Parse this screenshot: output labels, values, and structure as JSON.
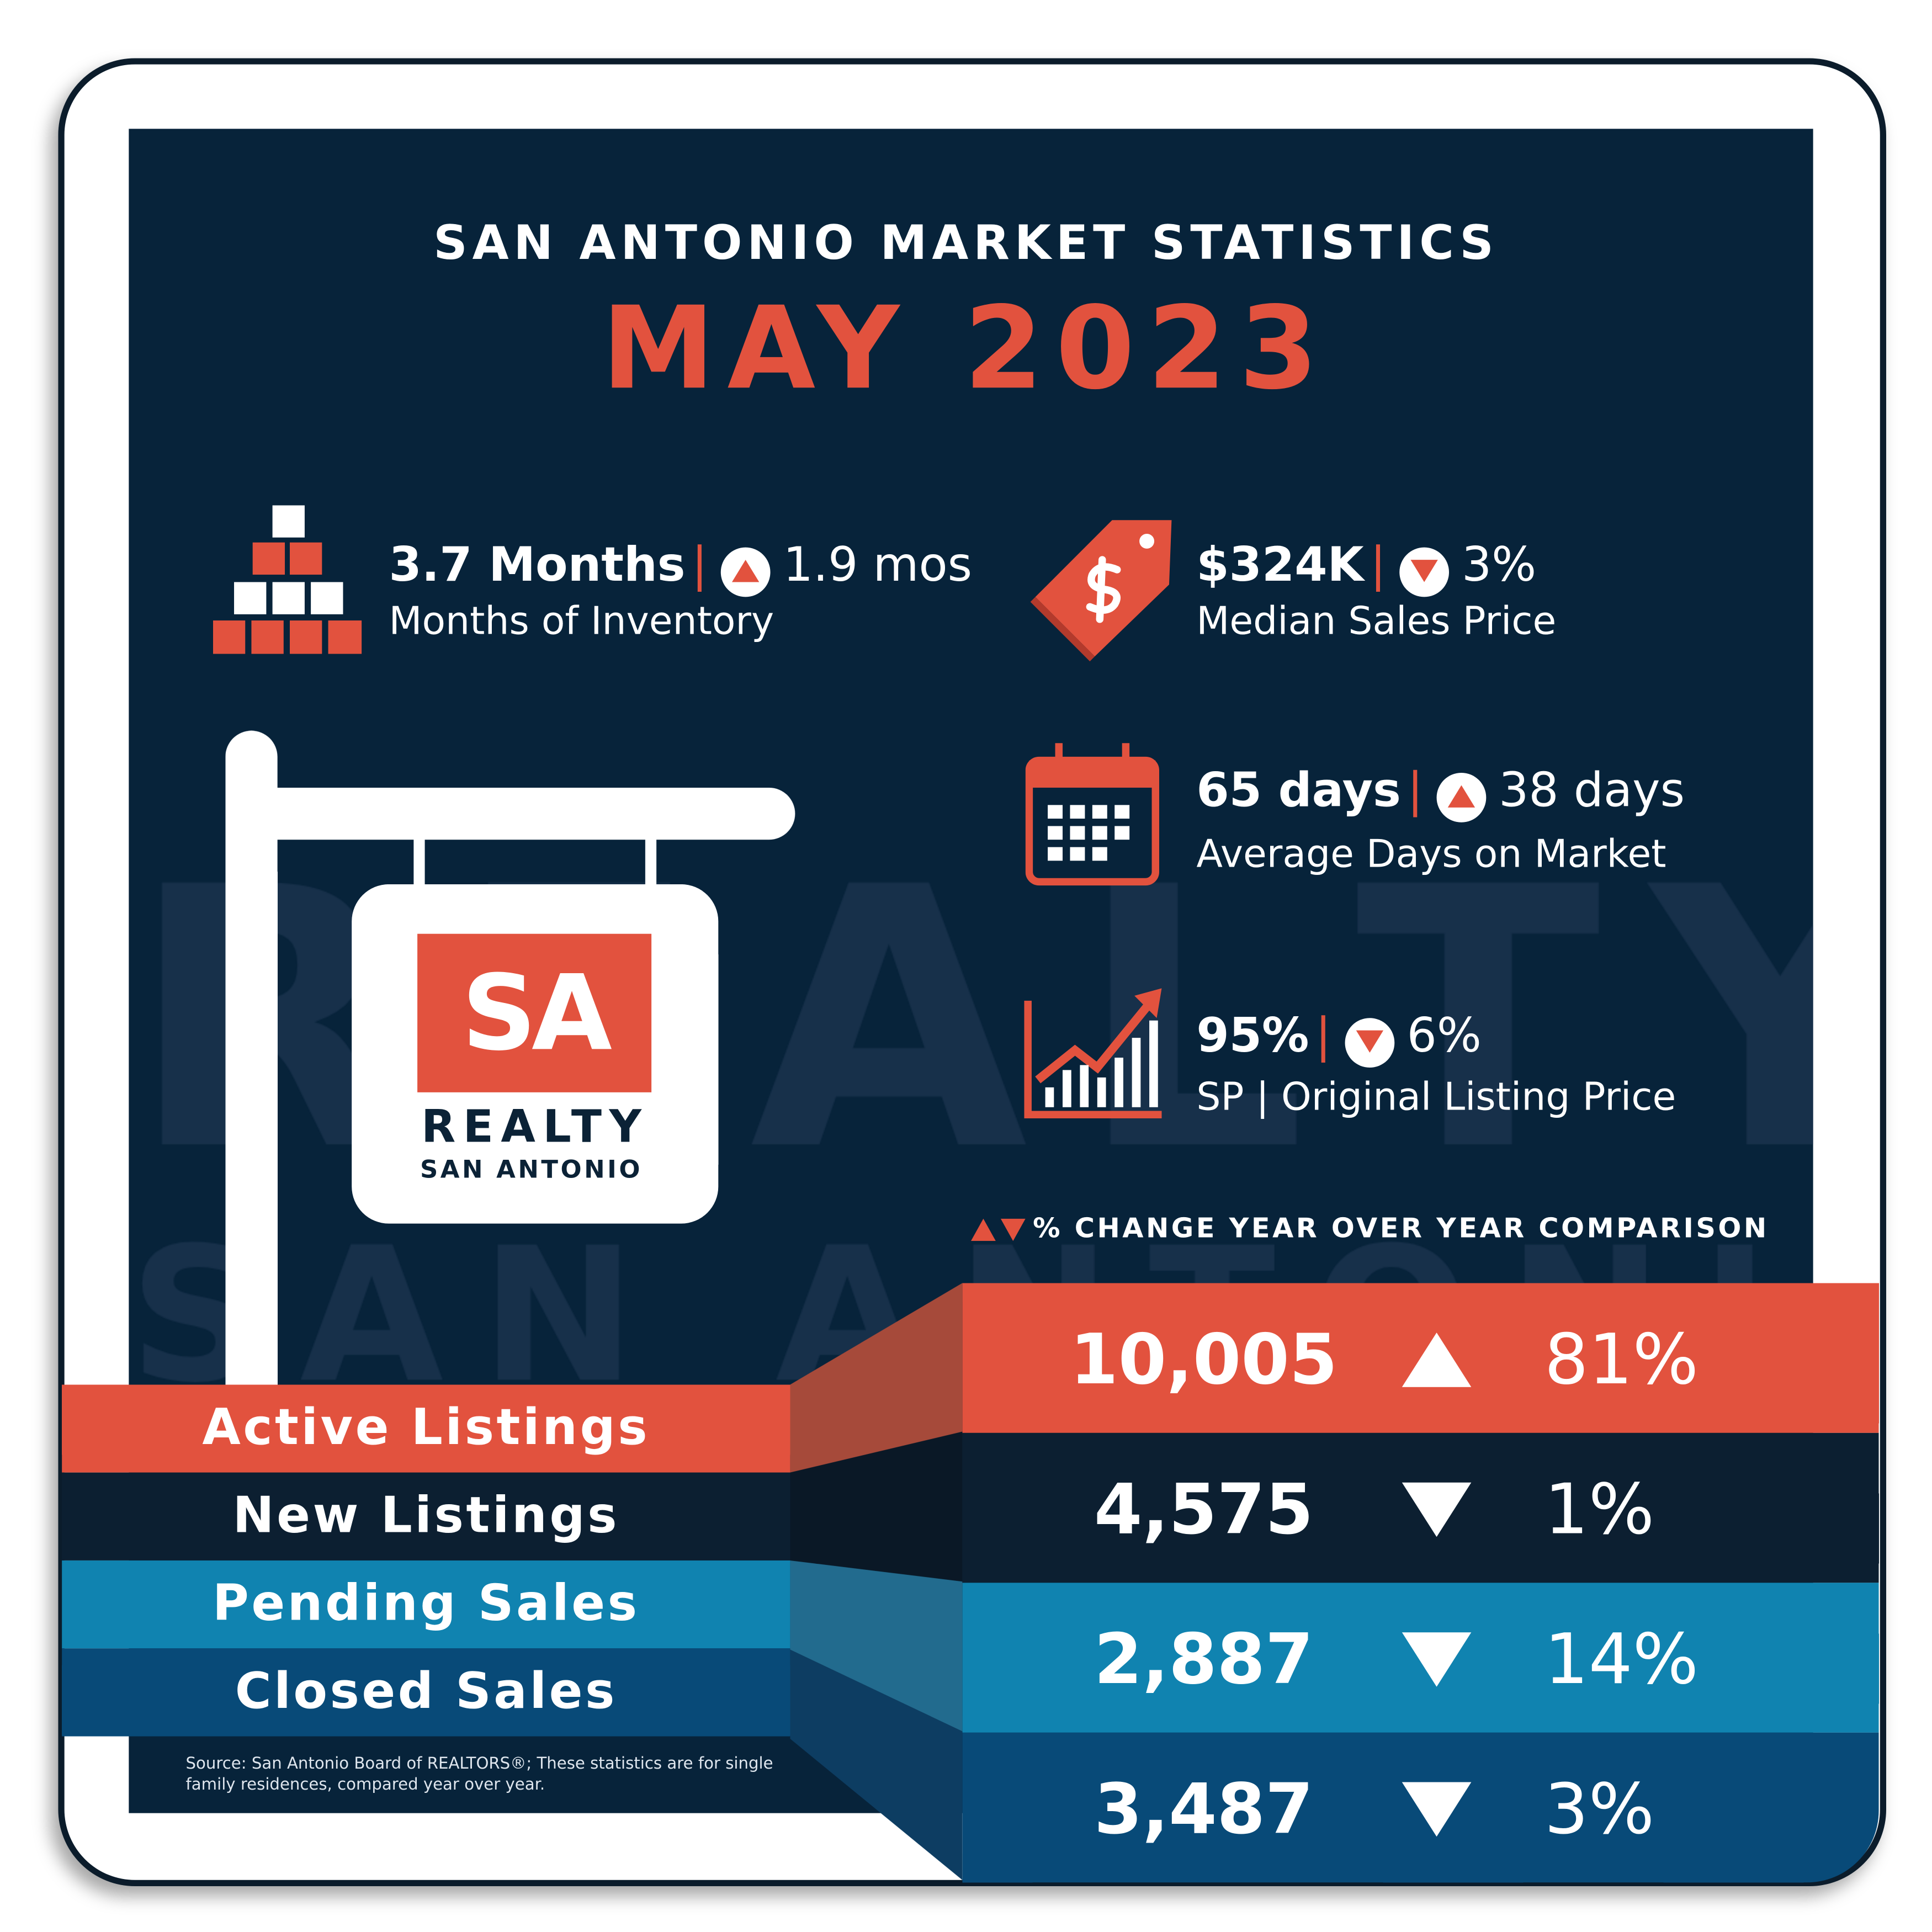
{
  "header": {
    "title": "SAN ANTONIO MARKET STATISTICS",
    "period": "MAY 2023"
  },
  "watermark": {
    "line1": "REALTY",
    "line2": "SAN ANTONIO"
  },
  "logo": {
    "mark": "SA",
    "name": "REALTY",
    "city": "SAN ANTONIO"
  },
  "stats": [
    {
      "icon": "boxes-icon",
      "value": "3.7 Months",
      "direction": "up",
      "change": "1.9 mos",
      "label": "Months of Inventory"
    },
    {
      "icon": "price-tag-icon",
      "value": "$324K",
      "direction": "down",
      "change": "3%",
      "label": "Median Sales Price"
    },
    {
      "icon": "calendar-icon",
      "value": "65 days",
      "direction": "up",
      "change": "38 days",
      "label": "Average Days on Market"
    },
    {
      "icon": "growth-chart-icon",
      "value": "95%",
      "direction": "down",
      "change": "6%",
      "label": "SP | Original Listing Price"
    }
  ],
  "legend": "% CHANGE YEAR OVER YEAR COMPARISON",
  "table": [
    {
      "label": "Active Listings",
      "value": "10,005",
      "direction": "up",
      "change": "81%",
      "color": "#e2523e"
    },
    {
      "label": "New Listings",
      "value": "4,575",
      "direction": "down",
      "change": "1%",
      "color": "#0c1f31"
    },
    {
      "label": "Pending Sales",
      "value": "2,887",
      "direction": "down",
      "change": "14%",
      "color": "#1083b0"
    },
    {
      "label": "Closed Sales",
      "value": "3,487",
      "direction": "down",
      "change": "3%",
      "color": "#084a78"
    }
  ],
  "source": "Source: San Antonio Board of REALTORS®; These statistics are for single family residences, compared year over year.",
  "colors": {
    "accent": "#e2523e",
    "navy": "#07233a",
    "blue": "#1083b0",
    "darkblue": "#084a78"
  }
}
